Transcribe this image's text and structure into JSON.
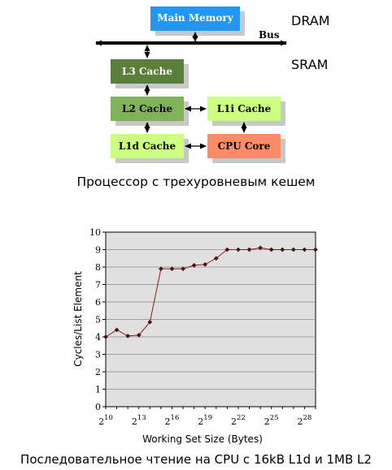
{
  "diagram": {
    "boxes": {
      "main_memory": "Main Memory",
      "l3": "L3 Cache",
      "l2": "L2 Cache",
      "l1i": "L1i Cache",
      "l1d": "L1d Cache",
      "cpu": "CPU Core"
    },
    "bus_label": "Bus",
    "dram_label": "DRAM",
    "sram_label": "SRAM",
    "colors": {
      "main_memory": "#2196f3",
      "l3": "#5a7f3a",
      "l2": "#7fb35a",
      "l1i": "#ccff80",
      "l1d": "#ccff80",
      "cpu": "#ff8c66",
      "shadow": "#c8c8c8"
    },
    "caption": "Процессор с трехуровневым кешем"
  },
  "chart_data": {
    "type": "line",
    "xlabel": "Working Set Size (Bytes)",
    "ylabel": "Cycles/List Element",
    "ylim": [
      0,
      10
    ],
    "yticks": [
      "0",
      "1",
      "2",
      "3",
      "4",
      "5",
      "6",
      "7",
      "8",
      "9",
      "10"
    ],
    "xticks": [
      {
        "exp": "10",
        "base": "2"
      },
      {
        "exp": "13",
        "base": "2"
      },
      {
        "exp": "16",
        "base": "2"
      },
      {
        "exp": "19",
        "base": "2"
      },
      {
        "exp": "22",
        "base": "2"
      },
      {
        "exp": "25",
        "base": "2"
      },
      {
        "exp": "28",
        "base": "2"
      }
    ],
    "x_log2": [
      10,
      11,
      12,
      13,
      14,
      15,
      16,
      17,
      18,
      19,
      20,
      21,
      22,
      23,
      24,
      25,
      26,
      27,
      28,
      29
    ],
    "values": [
      4.0,
      4.4,
      4.05,
      4.1,
      4.85,
      7.9,
      7.9,
      7.9,
      8.1,
      8.15,
      8.5,
      9.0,
      9.0,
      9.0,
      9.1,
      9.0,
      9.0,
      9.0,
      9.0,
      9.0
    ],
    "grid": true,
    "line_color": "#8b1a1a",
    "plot_bg": "#e0e0e0"
  },
  "chart_caption": "Последовательное чтение на CPU с 16kB L1d и 1MB L2"
}
